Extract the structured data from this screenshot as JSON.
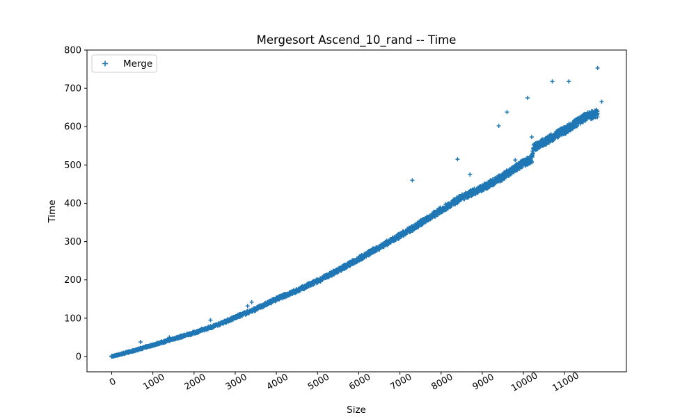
{
  "chart_data": {
    "type": "scatter",
    "title": "Mergesort Ascend_10_rand -- Time",
    "xlabel": "Size",
    "ylabel": "Time",
    "xlim": [
      -600,
      12500
    ],
    "ylim": [
      -40,
      800
    ],
    "xticks": [
      0,
      1000,
      2000,
      3000,
      4000,
      5000,
      6000,
      7000,
      8000,
      9000,
      10000,
      11000
    ],
    "yticks": [
      0,
      100,
      200,
      300,
      400,
      500,
      600,
      700,
      800
    ],
    "xtick_rotation_deg": -30,
    "legend": {
      "position": "top-left",
      "entries": [
        "Merge"
      ]
    },
    "grid": false,
    "marker": "+",
    "series": [
      {
        "name": "Merge",
        "color": "#1f77b4",
        "trend_points": [
          [
            0,
            0
          ],
          [
            500,
            14
          ],
          [
            1000,
            30
          ],
          [
            1500,
            46
          ],
          [
            2000,
            62
          ],
          [
            2500,
            80
          ],
          [
            3000,
            102
          ],
          [
            3500,
            124
          ],
          [
            4000,
            150
          ],
          [
            4500,
            172
          ],
          [
            5000,
            197
          ],
          [
            5500,
            225
          ],
          [
            6000,
            255
          ],
          [
            6500,
            285
          ],
          [
            7000,
            315
          ],
          [
            7500,
            348
          ],
          [
            8000,
            383
          ],
          [
            8500,
            415
          ],
          [
            9000,
            440
          ],
          [
            9500,
            470
          ],
          [
            10000,
            505
          ],
          [
            10200,
            515
          ],
          [
            10250,
            545
          ],
          [
            10500,
            560
          ],
          [
            11000,
            590
          ],
          [
            11500,
            625
          ],
          [
            11800,
            635
          ]
        ],
        "outliers": [
          [
            700,
            38
          ],
          [
            1400,
            50
          ],
          [
            2400,
            95
          ],
          [
            3300,
            132
          ],
          [
            3400,
            142
          ],
          [
            7300,
            460
          ],
          [
            8400,
            515
          ],
          [
            8700,
            475
          ],
          [
            9400,
            602
          ],
          [
            9600,
            638
          ],
          [
            9800,
            513
          ],
          [
            10100,
            675
          ],
          [
            10200,
            573
          ],
          [
            10700,
            718
          ],
          [
            11100,
            718
          ],
          [
            11800,
            753
          ],
          [
            11900,
            665
          ]
        ]
      }
    ]
  }
}
